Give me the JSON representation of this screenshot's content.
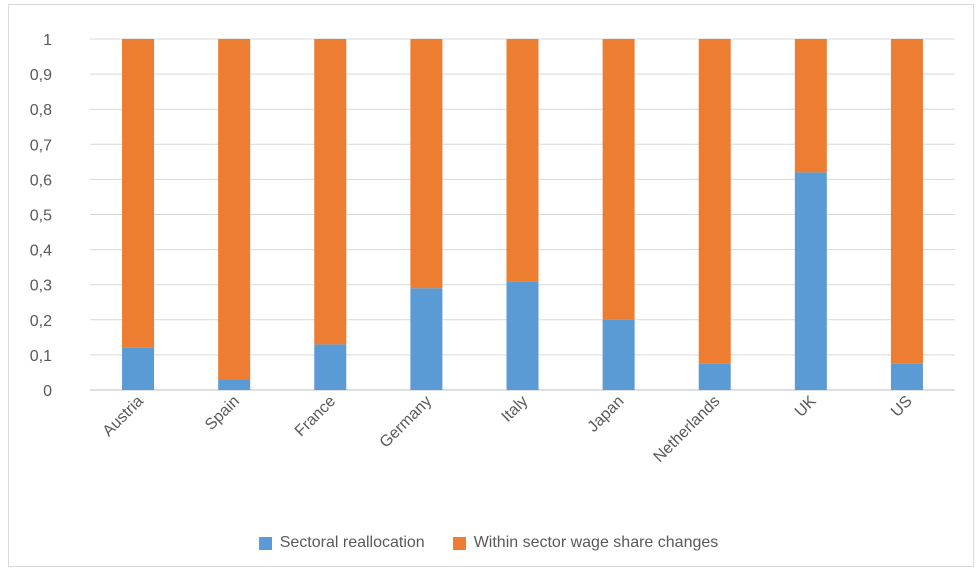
{
  "chart_data": {
    "type": "bar",
    "stacked": true,
    "categories": [
      "Austria",
      "Spain",
      "France",
      "Germany",
      "Italy",
      "Japan",
      "Netherlands",
      "UK",
      "US"
    ],
    "series": [
      {
        "name": "Sectoral reallocation",
        "color": "#5b9bd5",
        "values": [
          0.12,
          0.03,
          0.13,
          0.29,
          0.31,
          0.2,
          0.075,
          0.62,
          0.075
        ]
      },
      {
        "name": "Within sector wage share changes",
        "color": "#ed7d31",
        "values": [
          0.88,
          0.97,
          0.87,
          0.71,
          0.69,
          0.8,
          0.925,
          0.38,
          0.925
        ]
      }
    ],
    "ylim": [
      0,
      1
    ],
    "yticks": [
      "0",
      "0,1",
      "0,2",
      "0,3",
      "0,4",
      "0,5",
      "0,6",
      "0,7",
      "0,8",
      "0,9",
      "1"
    ],
    "grid": true,
    "gridColor": "#d9d9d9",
    "legend": "bottom"
  }
}
